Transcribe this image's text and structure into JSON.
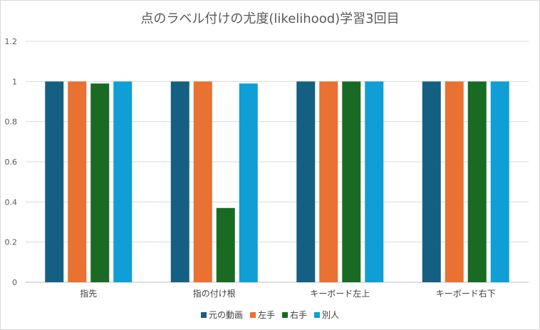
{
  "chart_data": {
    "type": "bar",
    "title": "点のラベル付けの尤度(likelihood)学習3回目",
    "xlabel": "",
    "ylabel": "",
    "categories": [
      "指先",
      "指の付け根",
      "キーボード左上",
      "キーボード右下"
    ],
    "ylim": [
      0,
      1.2
    ],
    "yticks": [
      "0",
      "0.2",
      "0.4",
      "0.6",
      "0.8",
      "1",
      "1.2"
    ],
    "grid": true,
    "legend_position": "bottom",
    "series": [
      {
        "name": "元の動画",
        "color": "#156082",
        "values": [
          1.0,
          1.0,
          1.0,
          1.0
        ]
      },
      {
        "name": "左手",
        "color": "#E97132",
        "values": [
          1.0,
          1.0,
          1.0,
          1.0
        ]
      },
      {
        "name": "右手",
        "color": "#196B24",
        "values": [
          0.99,
          0.37,
          1.0,
          1.0
        ]
      },
      {
        "name": "別人",
        "color": "#0F9ED5",
        "values": [
          1.0,
          0.99,
          1.0,
          1.0
        ]
      }
    ]
  }
}
